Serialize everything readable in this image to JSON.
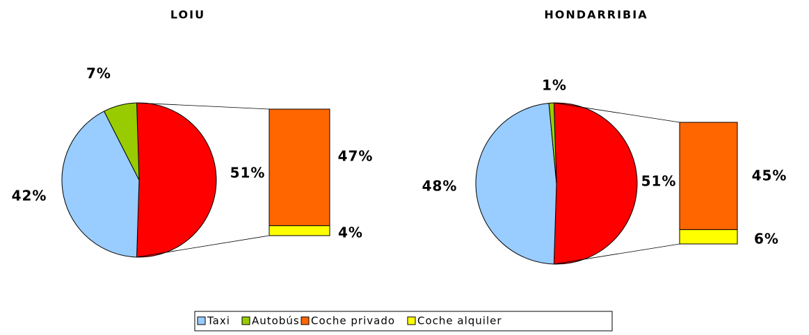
{
  "chart_data": [
    {
      "type": "pie-of-bar",
      "title": "LOIU",
      "values": [
        42,
        7,
        51
      ],
      "value_labels": [
        "42%",
        "7%",
        "51%"
      ],
      "colors": [
        "#99ccff",
        "#99cc00",
        "#ff0000"
      ],
      "bar_values": [
        47,
        4
      ],
      "bar_value_labels": [
        "47%",
        "4%"
      ],
      "bar_colors": [
        "#ff6600",
        "#ffff00"
      ]
    },
    {
      "type": "pie-of-bar",
      "title": "HONDARRIBIA",
      "values": [
        48,
        1,
        51
      ],
      "value_labels": [
        "48%",
        "1%",
        "51%"
      ],
      "colors": [
        "#99ccff",
        "#99cc00",
        "#ff0000"
      ],
      "bar_values": [
        45,
        6
      ],
      "bar_value_labels": [
        "45%",
        "6%"
      ],
      "bar_colors": [
        "#ff6600",
        "#ffff00"
      ]
    }
  ],
  "legend": [
    "Taxi",
    "Autobús",
    "Coche privado",
    "Coche alquiler"
  ]
}
